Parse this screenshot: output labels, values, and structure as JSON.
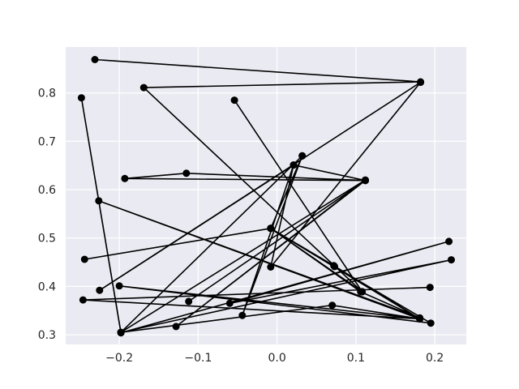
{
  "chart_data": {
    "type": "line",
    "title": "",
    "xlabel": "",
    "ylabel": "",
    "xlim": [
      -0.268,
      0.24
    ],
    "ylim": [
      0.28,
      0.895
    ],
    "grid": true,
    "style": "seaborn-darkgrid",
    "background_color": "#eaeaf2",
    "line_color": "#000000",
    "xticks": [
      -0.2,
      -0.1,
      0.0,
      0.1,
      0.2
    ],
    "xtick_labels": [
      "−0.2",
      "−0.1",
      "0.0",
      "0.1",
      "0.2"
    ],
    "yticks": [
      0.3,
      0.4,
      0.5,
      0.6,
      0.7,
      0.8
    ],
    "ytick_labels": [
      "0.3",
      "0.4",
      "0.5",
      "0.6",
      "0.7",
      "0.8"
    ],
    "series": [
      {
        "name": "path",
        "marker": "o",
        "points": [
          [
            -0.231,
            0.869
          ],
          [
            0.182,
            0.823
          ],
          [
            -0.169,
            0.811
          ],
          [
            0.108,
            0.389
          ],
          [
            -0.054,
            0.785
          ],
          [
            0.108,
            0.389
          ],
          [
            -0.008,
            0.52
          ],
          [
            0.072,
            0.443
          ],
          [
            0.181,
            0.333
          ],
          [
            -0.008,
            0.52
          ],
          [
            -0.244,
            0.456
          ],
          [
            -0.008,
            0.52
          ],
          [
            0.106,
            0.389
          ],
          [
            0.181,
            0.335
          ],
          [
            -0.226,
            0.577
          ],
          [
            0.181,
            0.333
          ],
          [
            -0.2,
            0.401
          ],
          [
            0.195,
            0.324
          ],
          [
            0.073,
            0.441
          ],
          [
            -0.008,
            0.52
          ],
          [
            0.032,
            0.67
          ],
          [
            -0.198,
            0.305
          ],
          [
            0.112,
            0.62
          ],
          [
            -0.128,
            0.317
          ],
          [
            0.112,
            0.619
          ],
          [
            -0.112,
            0.369
          ],
          [
            0.112,
            0.619
          ],
          [
            -0.193,
            0.623
          ],
          [
            -0.115,
            0.634
          ],
          [
            0.112,
            0.619
          ],
          [
            0.021,
            0.651
          ],
          [
            -0.225,
            0.392
          ],
          [
            0.182,
            0.822
          ],
          [
            -0.008,
            0.44
          ],
          [
            0.021,
            0.651
          ],
          [
            -0.044,
            0.34
          ],
          [
            0.032,
            0.67
          ],
          [
            -0.198,
            0.305
          ],
          [
            0.221,
            0.455
          ],
          [
            -0.06,
            0.365
          ],
          [
            0.218,
            0.493
          ],
          [
            -0.198,
            0.304
          ],
          [
            -0.248,
            0.79
          ],
          [
            -0.198,
            0.305
          ],
          [
            0.07,
            0.361
          ],
          [
            0.181,
            0.333
          ],
          [
            -0.246,
            0.372
          ],
          [
            0.194,
            0.398
          ]
        ]
      }
    ]
  }
}
